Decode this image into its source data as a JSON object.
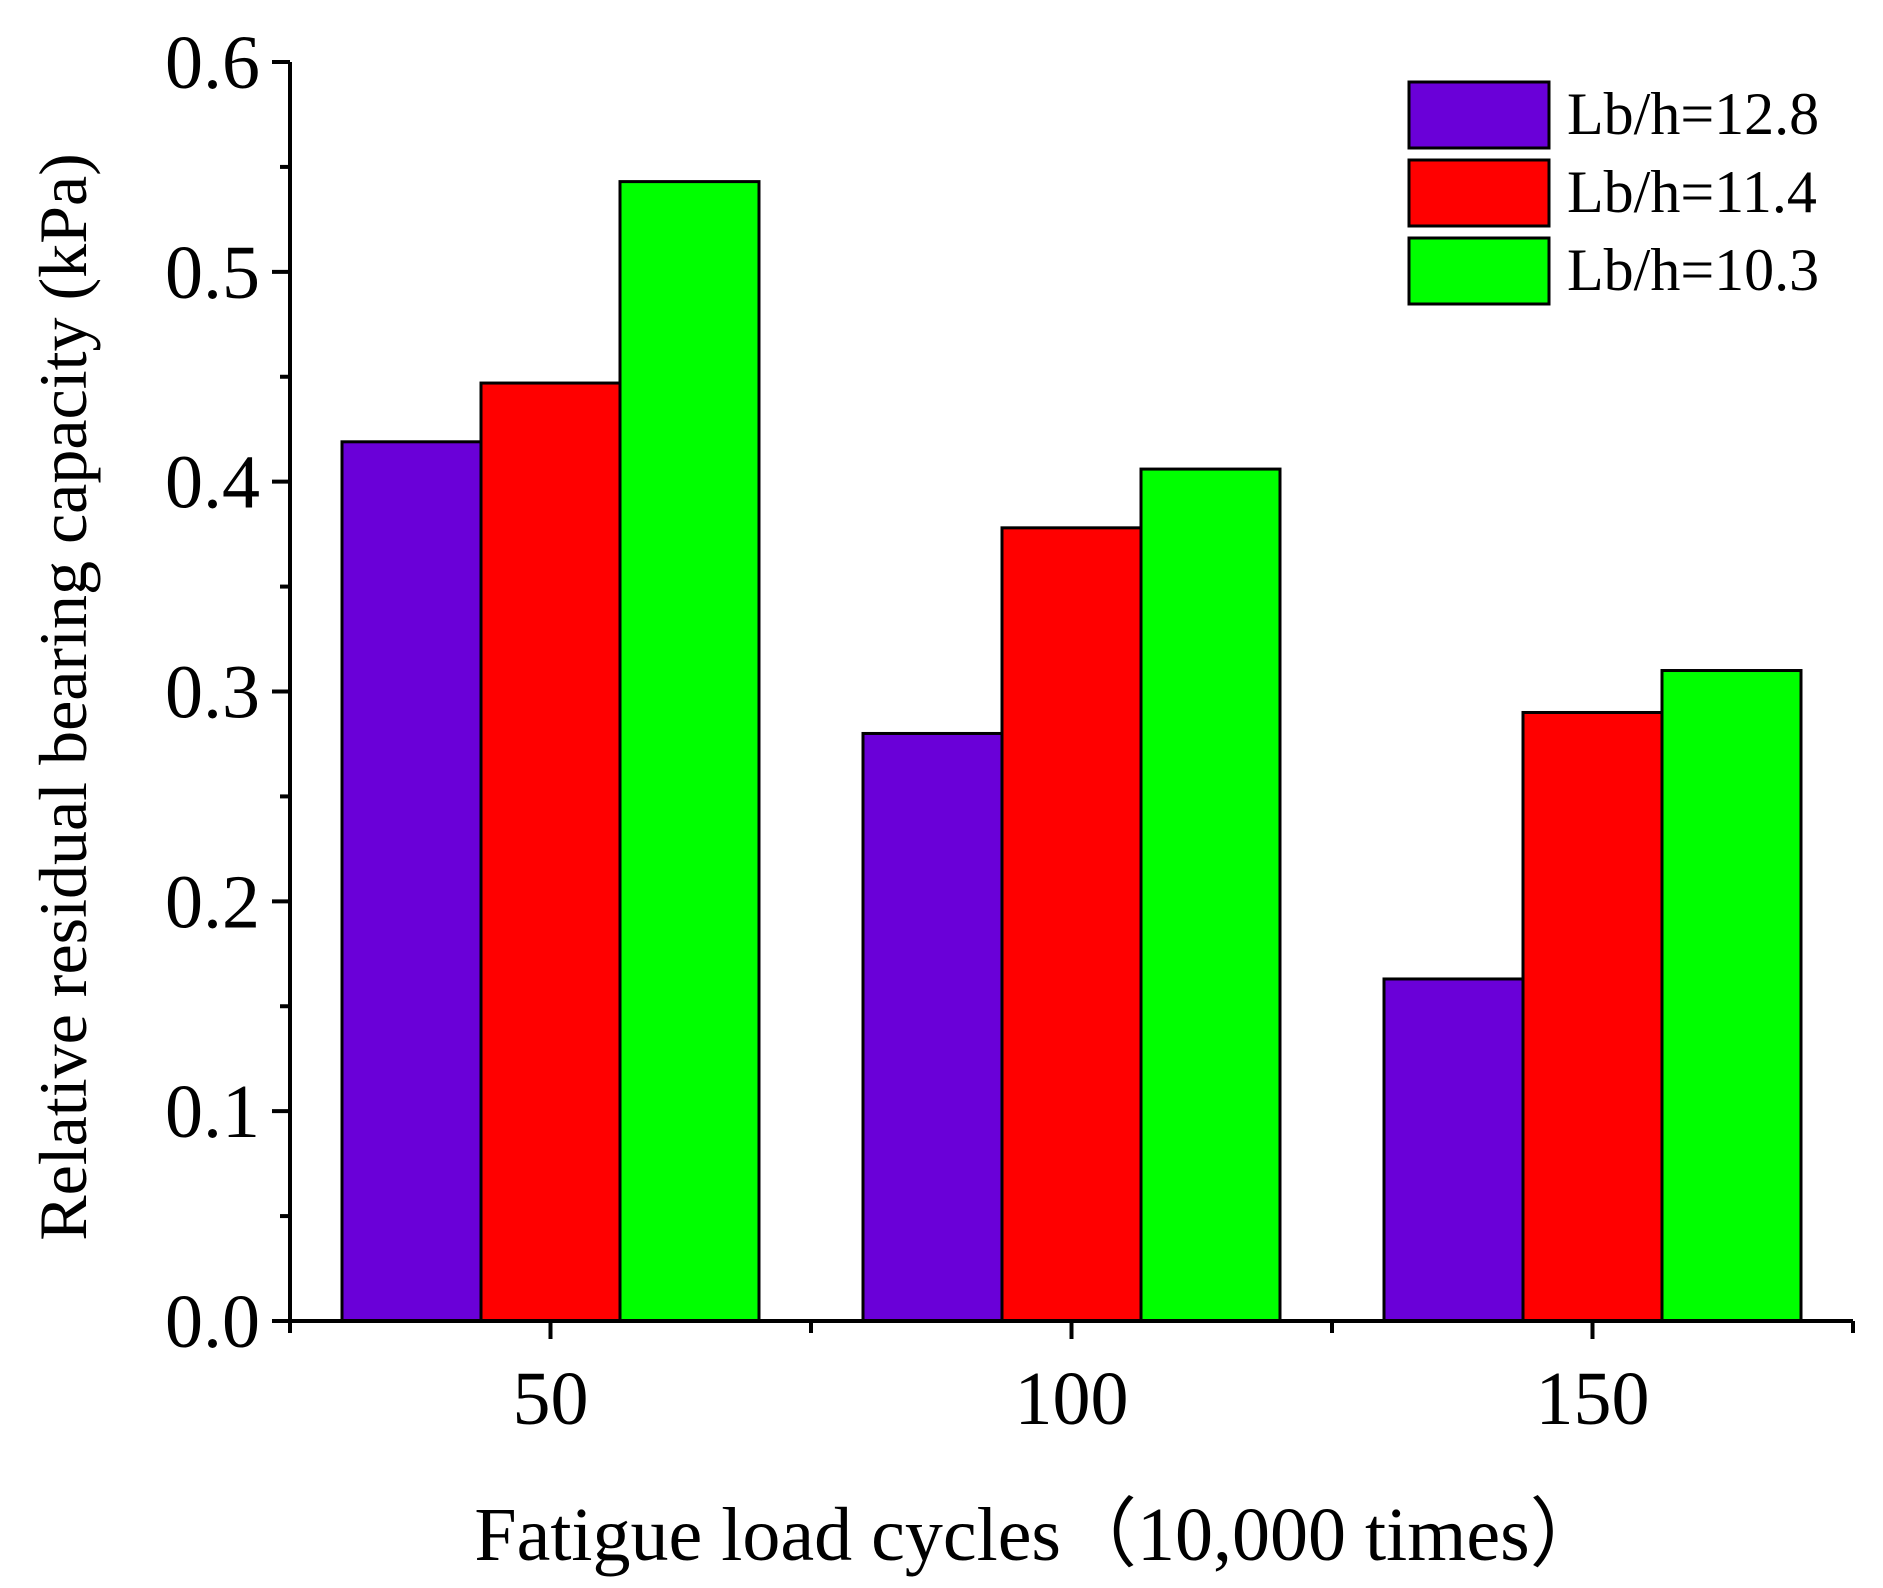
{
  "chart_data": {
    "type": "bar",
    "title": "",
    "xlabel": "Fatigue load cycles（10,000 times）",
    "ylabel": "Relative residual bearing capacity (kPa)",
    "categories": [
      "50",
      "100",
      "150"
    ],
    "series": [
      {
        "name": "Lb/h=12.8",
        "color": "#6a00d8",
        "values": [
          0.419,
          0.28,
          0.163
        ]
      },
      {
        "name": "Lb/h=11.4",
        "color": "#ff0000",
        "values": [
          0.447,
          0.378,
          0.29
        ]
      },
      {
        "name": "Lb/h=10.3",
        "color": "#00ff00",
        "values": [
          0.543,
          0.406,
          0.31
        ]
      }
    ],
    "ylim": [
      0,
      0.6
    ],
    "yticks": [
      "0.0",
      "0.1",
      "0.2",
      "0.3",
      "0.4",
      "0.5",
      "0.6"
    ],
    "grid": false,
    "legend_position": "top-right"
  }
}
